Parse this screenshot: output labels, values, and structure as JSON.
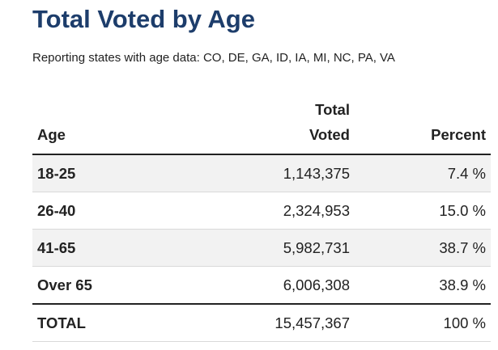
{
  "title": "Total Voted by Age",
  "subtitle": "Reporting states with age data: CO, DE, GA, ID, IA, MI, NC, PA, VA",
  "table": {
    "headers": {
      "age": "Age",
      "voted_line1": "Total",
      "voted_line2": "Voted",
      "percent": "Percent"
    },
    "rows": [
      {
        "age": "18-25",
        "voted": "1,143,375",
        "percent": "7.4 %"
      },
      {
        "age": "26-40",
        "voted": "2,324,953",
        "percent": "15.0 %"
      },
      {
        "age": "41-65",
        "voted": "5,982,731",
        "percent": "38.7 %"
      },
      {
        "age": "Over 65",
        "voted": "6,006,308",
        "percent": "38.9 %"
      }
    ],
    "total": {
      "label": "TOTAL",
      "voted": "15,457,367",
      "percent": "100 %"
    }
  }
}
